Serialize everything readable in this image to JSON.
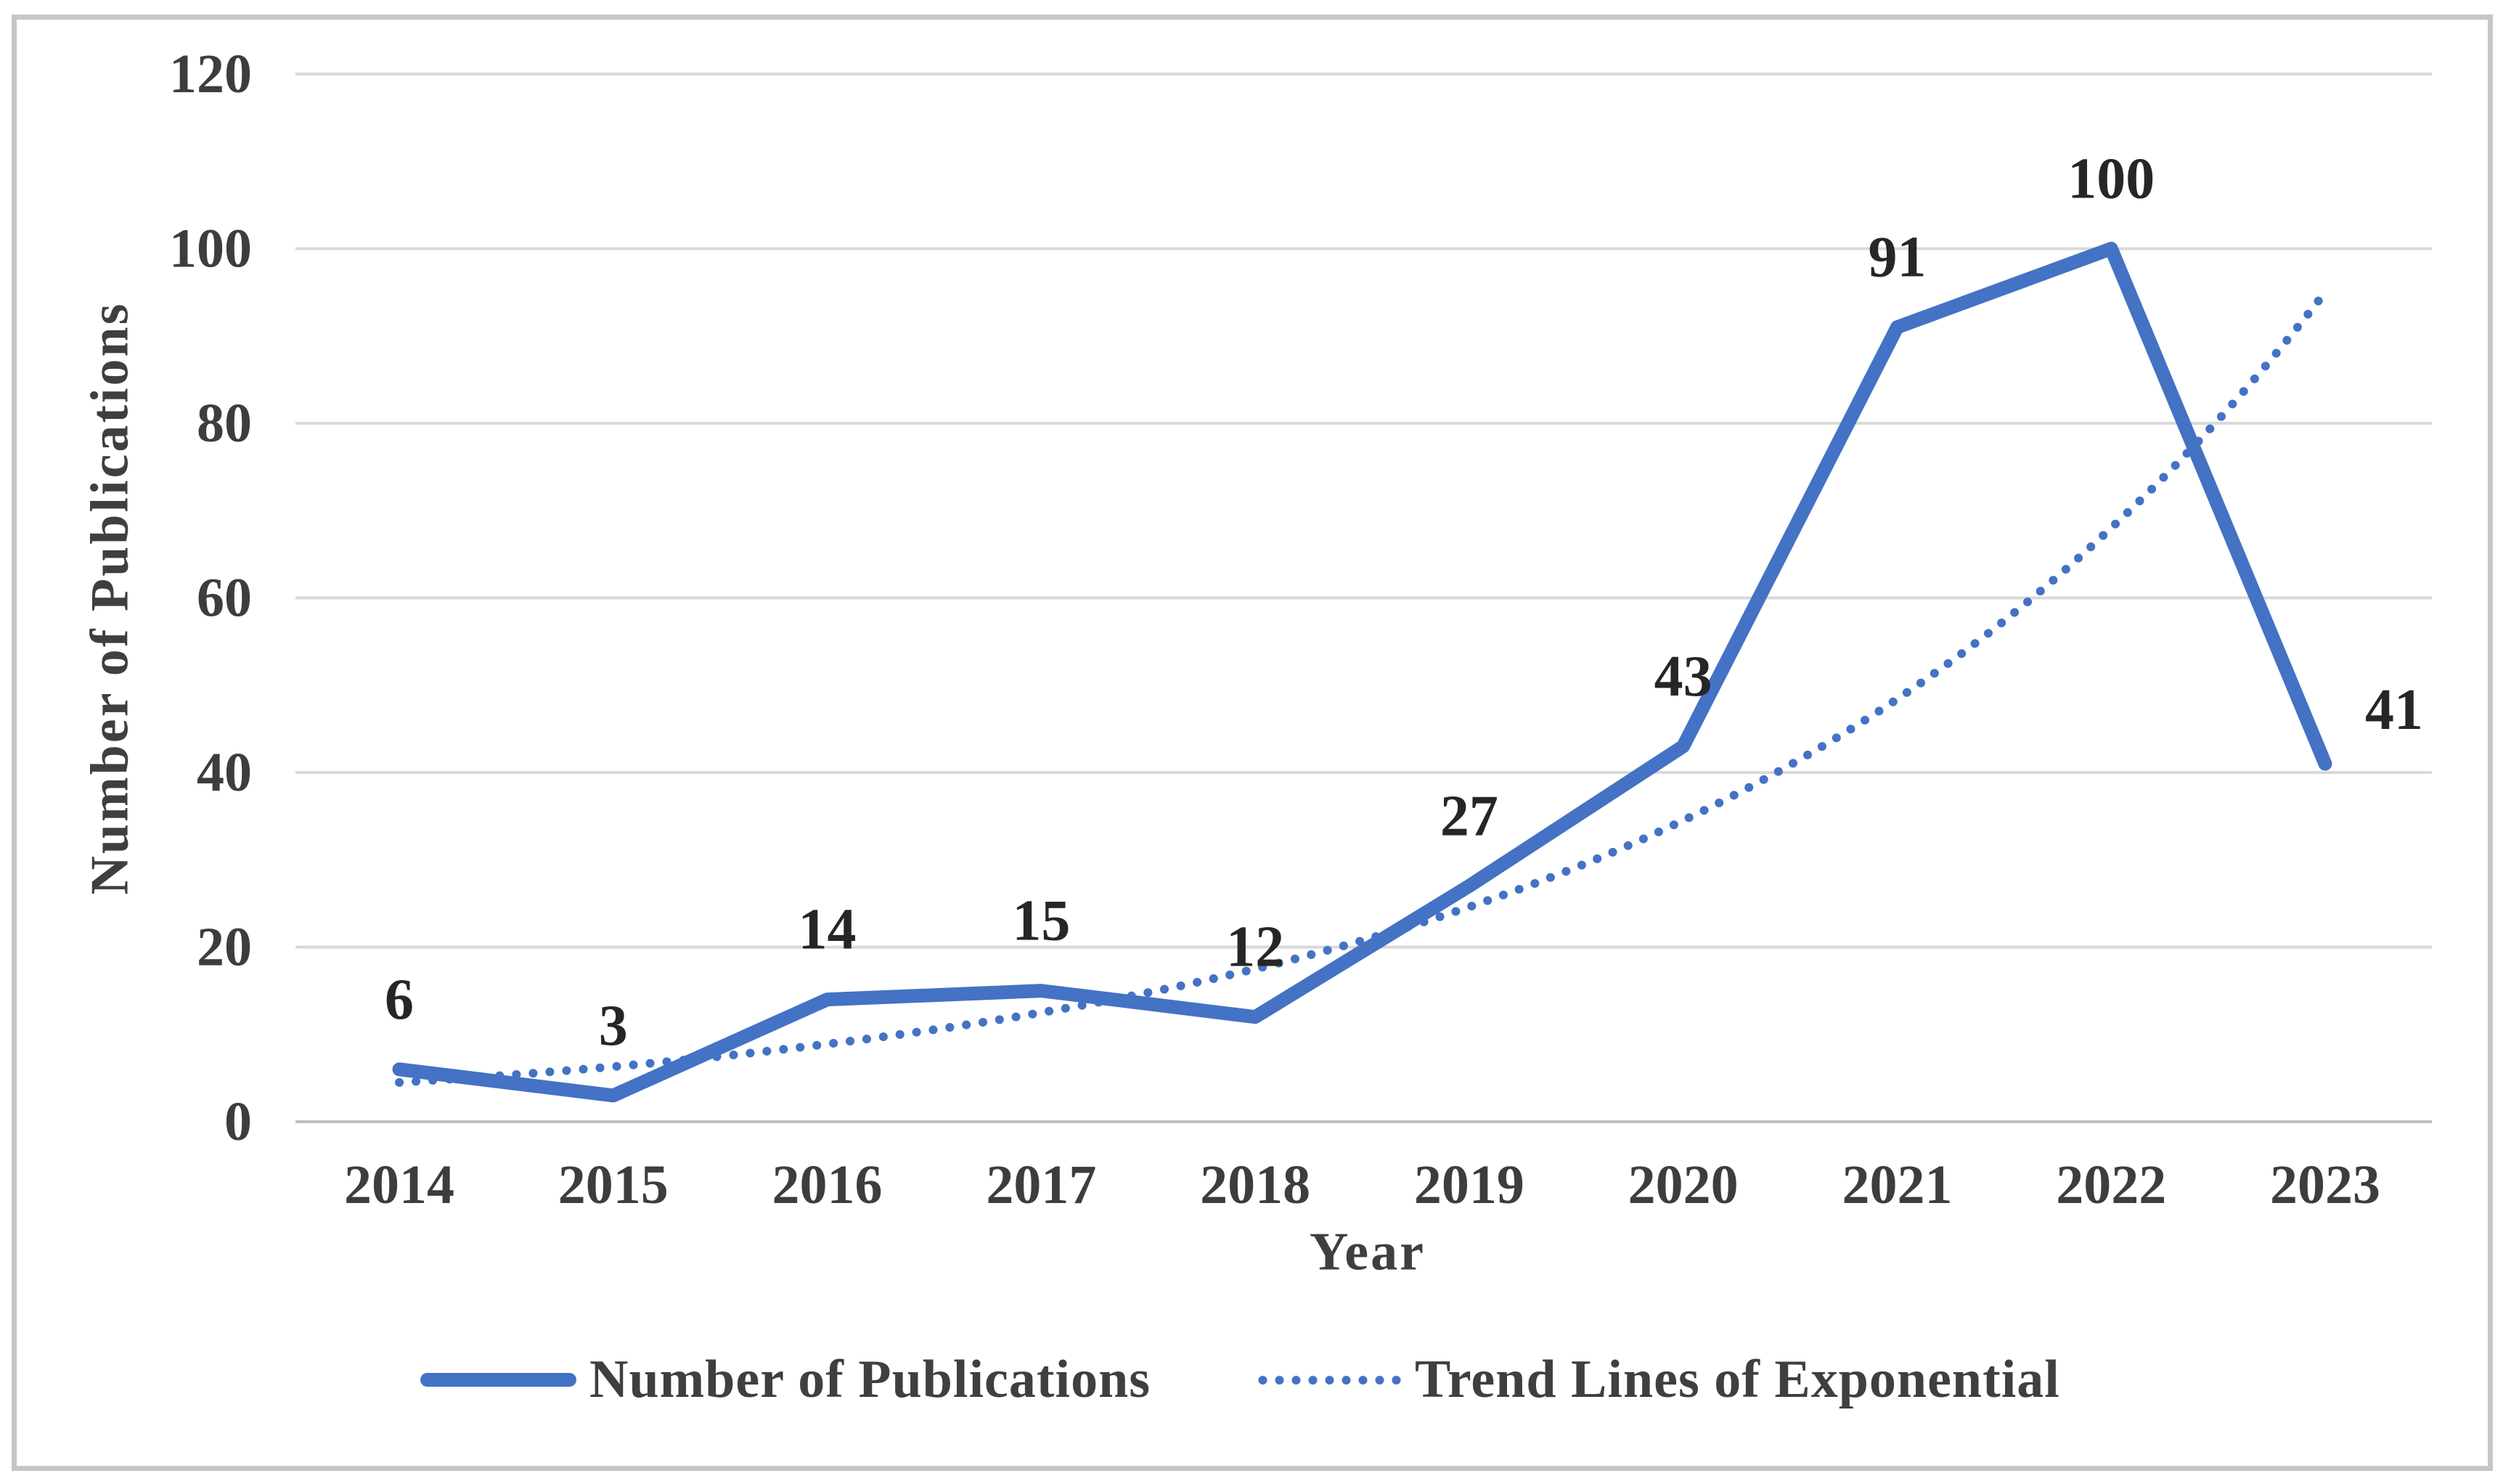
{
  "chart_data": {
    "type": "line",
    "title": "",
    "categories": [
      "2014",
      "2015",
      "2016",
      "2017",
      "2018",
      "2019",
      "2020",
      "2021",
      "2022",
      "2023"
    ],
    "series": [
      {
        "name": "Number of Publications",
        "style": "solid",
        "values": [
          6,
          3,
          14,
          15,
          12,
          27,
          43,
          91,
          100,
          41
        ],
        "data_labels": [
          "6",
          "3",
          "14",
          "15",
          "12",
          "27",
          "43",
          "91",
          "100",
          "41"
        ]
      },
      {
        "name": "Trend Lines of Exponential",
        "style": "dotted",
        "values": [
          4.5,
          6.3,
          8.9,
          12.5,
          17.5,
          24.6,
          34.5,
          48.4,
          68,
          95
        ],
        "data_labels": []
      }
    ],
    "xlabel": "Year",
    "ylabel": "Number of Publications",
    "ylim": [
      0,
      120
    ],
    "yticks": [
      0,
      20,
      40,
      60,
      80,
      100,
      120
    ],
    "grid": "horizontal",
    "legend_position": "bottom",
    "colors": {
      "series_blue": "#4472C4",
      "gridline": "#D9D9D9",
      "axis_line": "#BFBFBF",
      "tick_text": "#3D3D3D",
      "data_label_text": "#262626",
      "frame_border": "#C6C6C6"
    }
  }
}
